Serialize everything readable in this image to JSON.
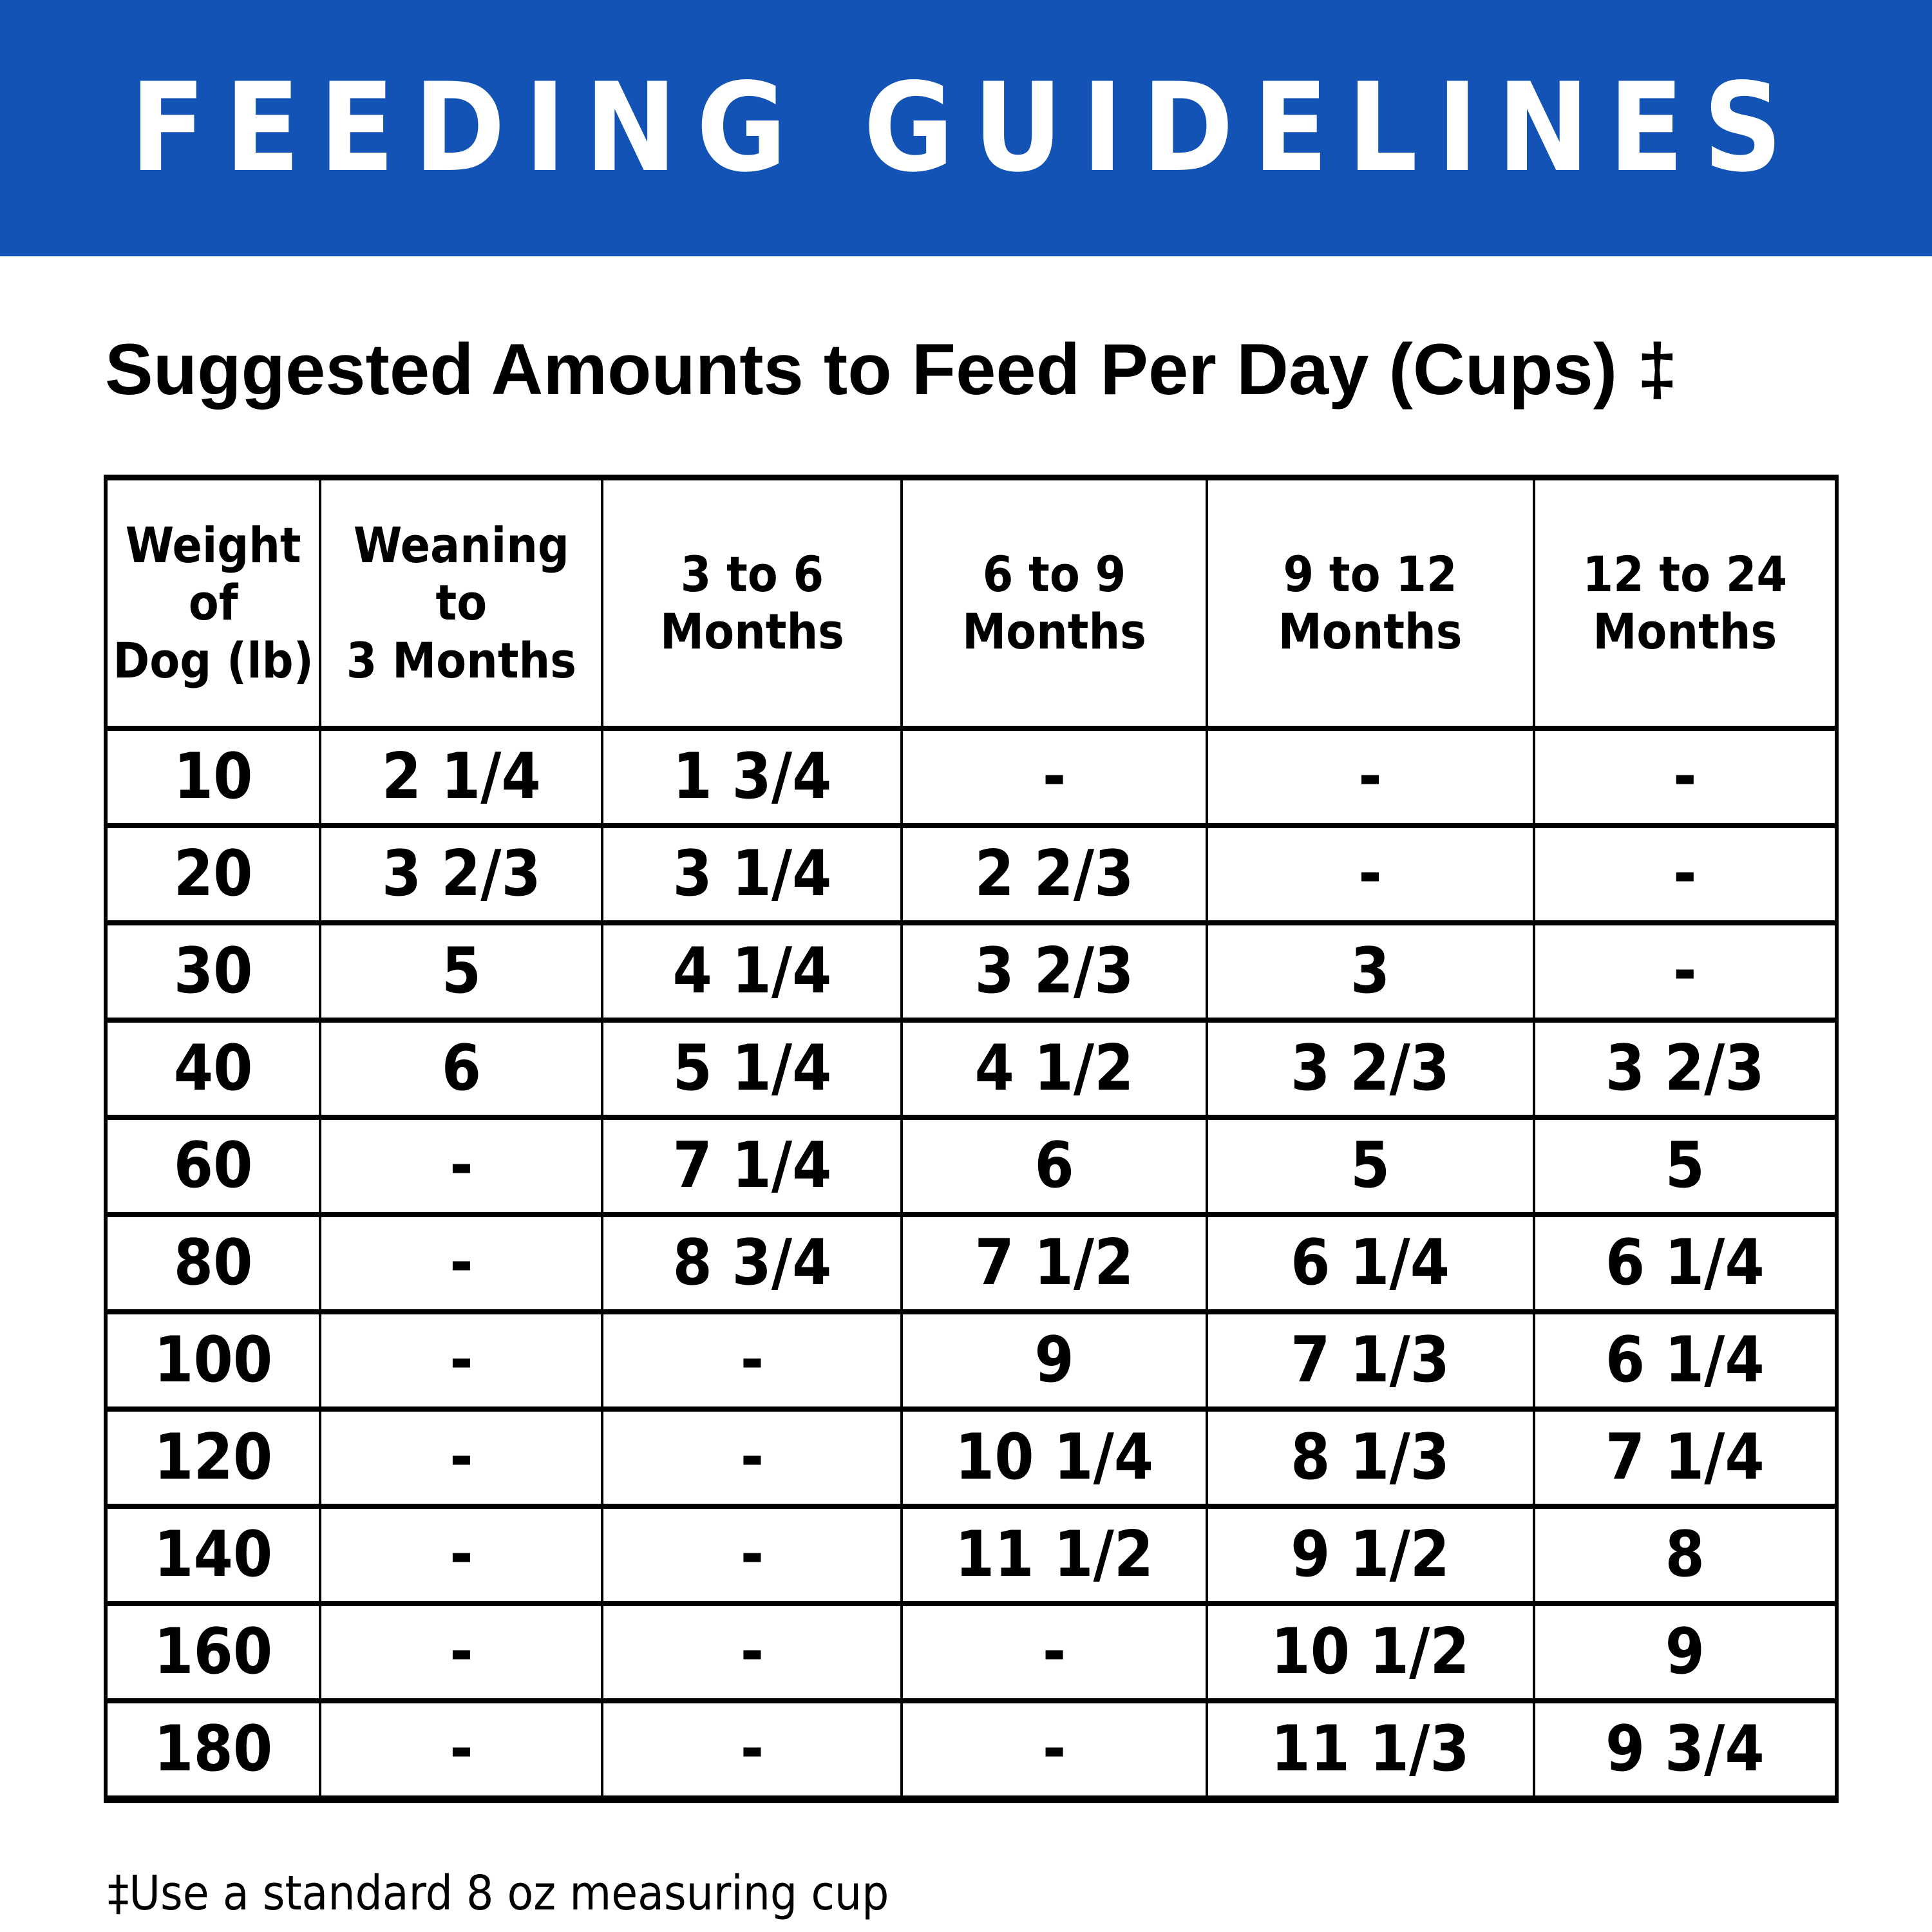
{
  "banner": {
    "title": "FEEDING GUIDELINES"
  },
  "colors": {
    "banner_bg": "#1353B5",
    "banner_text": "#FFFFFF",
    "text": "#000000",
    "border": "#000000"
  },
  "section_title": "Suggested Amounts to Feed Per Day (Cups) ‡",
  "footnote": "‡Use a standard 8 oz measuring cup",
  "table": {
    "headers": [
      {
        "line1": "Weight of",
        "line2": "Dog (lb)"
      },
      {
        "line1": "Weaning to",
        "line2": "3 Months"
      },
      {
        "line1": "3 to 6",
        "line2": "Months"
      },
      {
        "line1": "6 to 9",
        "line2": "Months"
      },
      {
        "line1": "9 to 12",
        "line2": "Months"
      },
      {
        "line1": "12 to 24",
        "line2": "Months"
      }
    ],
    "rows": [
      [
        "10",
        "2 1/4",
        "1 3/4",
        "-",
        "-",
        "-"
      ],
      [
        "20",
        "3 2/3",
        "3 1/4",
        "2 2/3",
        "-",
        "-"
      ],
      [
        "30",
        "5",
        "4 1/4",
        "3 2/3",
        "3",
        "-"
      ],
      [
        "40",
        "6",
        "5 1/4",
        "4 1/2",
        "3 2/3",
        "3 2/3"
      ],
      [
        "60",
        "-",
        "7 1/4",
        "6",
        "5",
        "5"
      ],
      [
        "80",
        "-",
        "8 3/4",
        "7 1/2",
        "6 1/4",
        "6 1/4"
      ],
      [
        "100",
        "-",
        "-",
        "9",
        "7 1/3",
        "6 1/4"
      ],
      [
        "120",
        "-",
        "-",
        "10 1/4",
        "8 1/3",
        "7 1/4"
      ],
      [
        "140",
        "-",
        "-",
        "11 1/2",
        "9 1/2",
        "8"
      ],
      [
        "160",
        "-",
        "-",
        "-",
        "10 1/2",
        "9"
      ],
      [
        "180",
        "-",
        "-",
        "-",
        "11 1/3",
        "9 3/4"
      ]
    ]
  },
  "chart_data": {
    "type": "table",
    "title": "Suggested Amounts to Feed Per Day (Cups) ‡",
    "columns": [
      "Weight of Dog (lb)",
      "Weaning to 3 Months",
      "3 to 6 Months",
      "6 to 9 Months",
      "9 to 12 Months",
      "12 to 24 Months"
    ],
    "rows": [
      [
        "10",
        "2 1/4",
        "1 3/4",
        "-",
        "-",
        "-"
      ],
      [
        "20",
        "3 2/3",
        "3 1/4",
        "2 2/3",
        "-",
        "-"
      ],
      [
        "30",
        "5",
        "4 1/4",
        "3 2/3",
        "3",
        "-"
      ],
      [
        "40",
        "6",
        "5 1/4",
        "4 1/2",
        "3 2/3",
        "3 2/3"
      ],
      [
        "60",
        "-",
        "7 1/4",
        "6",
        "5",
        "5"
      ],
      [
        "80",
        "-",
        "8 3/4",
        "7 1/2",
        "6 1/4",
        "6 1/4"
      ],
      [
        "100",
        "-",
        "-",
        "9",
        "7 1/3",
        "6 1/4"
      ],
      [
        "120",
        "-",
        "-",
        "10 1/4",
        "8 1/3",
        "7 1/4"
      ],
      [
        "140",
        "-",
        "-",
        "11 1/2",
        "9 1/2",
        "8"
      ],
      [
        "160",
        "-",
        "-",
        "-",
        "10 1/2",
        "9"
      ],
      [
        "180",
        "-",
        "-",
        "-",
        "11 1/3",
        "9 3/4"
      ]
    ],
    "footnote": "‡Use a standard 8 oz measuring cup",
    "layout": {
      "grid": true,
      "header_position": "top"
    }
  }
}
